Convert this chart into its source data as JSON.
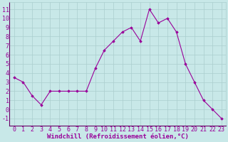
{
  "x": [
    0,
    1,
    2,
    3,
    4,
    5,
    6,
    7,
    8,
    9,
    10,
    11,
    12,
    13,
    14,
    15,
    16,
    17,
    18,
    19,
    20,
    21,
    22,
    23
  ],
  "y": [
    3.5,
    3.0,
    1.5,
    0.5,
    2.0,
    2.0,
    2.0,
    2.0,
    2.0,
    4.5,
    6.5,
    7.5,
    8.5,
    9.0,
    7.5,
    11.0,
    9.5,
    10.0,
    8.5,
    5.0,
    3.0,
    1.0,
    0.0,
    -1.0
  ],
  "line_color": "#990099",
  "marker_color": "#990099",
  "bg_color": "#c8e8e8",
  "grid_color": "#aacece",
  "xlabel": "Windchill (Refroidissement éolien,°C)",
  "xlabel_color": "#990099",
  "xlabel_fontsize": 6.5,
  "tick_label_color": "#990099",
  "tick_fontsize": 6,
  "ylim": [
    -1.8,
    11.8
  ],
  "xlim": [
    -0.5,
    23.5
  ],
  "yticks": [
    -1,
    0,
    1,
    2,
    3,
    4,
    5,
    6,
    7,
    8,
    9,
    10,
    11
  ],
  "xticks": [
    0,
    1,
    2,
    3,
    4,
    5,
    6,
    7,
    8,
    9,
    10,
    11,
    12,
    13,
    14,
    15,
    16,
    17,
    18,
    19,
    20,
    21,
    22,
    23
  ]
}
